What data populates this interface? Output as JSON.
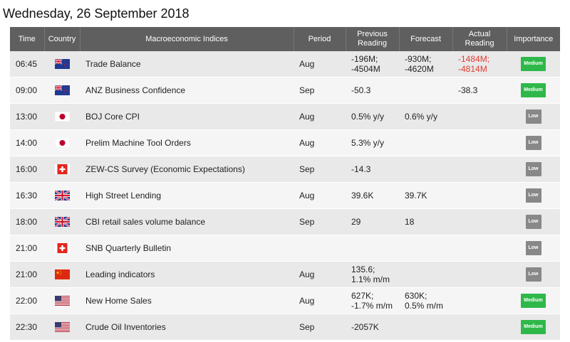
{
  "date_title": "Wednesday, 26 September 2018",
  "headers": {
    "time": "Time",
    "country": "Country",
    "indices": "Macroeconomic Indices",
    "period": "Period",
    "previous": "Previous Reading",
    "forecast": "Forecast",
    "actual": "Actual Reading",
    "importance": "Importance"
  },
  "rows": [
    {
      "time": "06:45",
      "country_icon": "nz-flag-icon",
      "index": "Trade Balance",
      "period": "Aug",
      "previous_1": "-196M;",
      "previous_2": "-4504M",
      "forecast_1": "-930M;",
      "forecast_2": "-4620M",
      "actual_1": "-1484M;",
      "actual_2": "-4814M",
      "importance": "Medium"
    },
    {
      "time": "09:00",
      "country_icon": "nz-flag-icon",
      "index": "ANZ Business Confidence",
      "period": "Sep",
      "previous_1": "-50.3",
      "previous_2": "",
      "forecast_1": "",
      "forecast_2": "",
      "actual_1": "-38.3",
      "actual_2": "",
      "importance": "Medium"
    },
    {
      "time": "13:00",
      "country_icon": "jp-flag-icon",
      "index": "BOJ Core CPI",
      "period": "Aug",
      "previous_1": "0.5% y/y",
      "previous_2": "",
      "forecast_1": "0.6% y/y",
      "forecast_2": "",
      "actual_1": "",
      "actual_2": "",
      "importance": "Low"
    },
    {
      "time": "14:00",
      "country_icon": "jp-flag-icon",
      "index": "Prelim Machine Tool Orders",
      "period": "Aug",
      "previous_1": "5.3% y/y",
      "previous_2": "",
      "forecast_1": "",
      "forecast_2": "",
      "actual_1": "",
      "actual_2": "",
      "importance": "Low"
    },
    {
      "time": "16:00",
      "country_icon": "ch-flag-icon",
      "index": "ZEW-CS Survey (Economic Expectations)",
      "period": "Sep",
      "previous_1": "-14.3",
      "previous_2": "",
      "forecast_1": "",
      "forecast_2": "",
      "actual_1": "",
      "actual_2": "",
      "importance": "Low"
    },
    {
      "time": "16:30",
      "country_icon": "uk-flag-icon",
      "index": "High Street Lending",
      "period": "Aug",
      "previous_1": "39.6K",
      "previous_2": "",
      "forecast_1": "39.7K",
      "forecast_2": "",
      "actual_1": "",
      "actual_2": "",
      "importance": "Low"
    },
    {
      "time": "18:00",
      "country_icon": "uk-flag-icon",
      "index": "CBI retail sales volume balance",
      "period": "Sep",
      "previous_1": "29",
      "previous_2": "",
      "forecast_1": "18",
      "forecast_2": "",
      "actual_1": "",
      "actual_2": "",
      "importance": "Low"
    },
    {
      "time": "21:00",
      "country_icon": "ch-flag-icon",
      "index": "SNB Quarterly Bulletin",
      "period": "",
      "previous_1": "",
      "previous_2": "",
      "forecast_1": "",
      "forecast_2": "",
      "actual_1": "",
      "actual_2": "",
      "importance": "Low"
    },
    {
      "time": "21:00",
      "country_icon": "cn-flag-icon",
      "index": "Leading indicators",
      "period": "Aug",
      "previous_1": "135.6;",
      "previous_2": "1.1% m/m",
      "forecast_1": "",
      "forecast_2": "",
      "actual_1": "",
      "actual_2": "",
      "importance": "Low"
    },
    {
      "time": "22:00",
      "country_icon": "us-flag-icon",
      "index": "New Home Sales",
      "period": "Aug",
      "previous_1": "627K;",
      "previous_2": "-1.7% m/m",
      "forecast_1": "630K;",
      "forecast_2": "0.5% m/m",
      "actual_1": "",
      "actual_2": "",
      "importance": "Medium"
    },
    {
      "time": "22:30",
      "country_icon": "us-flag-icon",
      "index": "Crude Oil Inventories",
      "period": "Sep",
      "previous_1": "-2057K",
      "previous_2": "",
      "forecast_1": "",
      "forecast_2": "",
      "actual_1": "",
      "actual_2": "",
      "importance": "Medium"
    }
  ],
  "colors": {
    "header_bg": "#5f5f5f",
    "row_odd": "#e9e9e9",
    "row_even": "#f5f5f5",
    "negative": "#e03c31",
    "medium": "#2fb84a",
    "low": "#888888"
  }
}
